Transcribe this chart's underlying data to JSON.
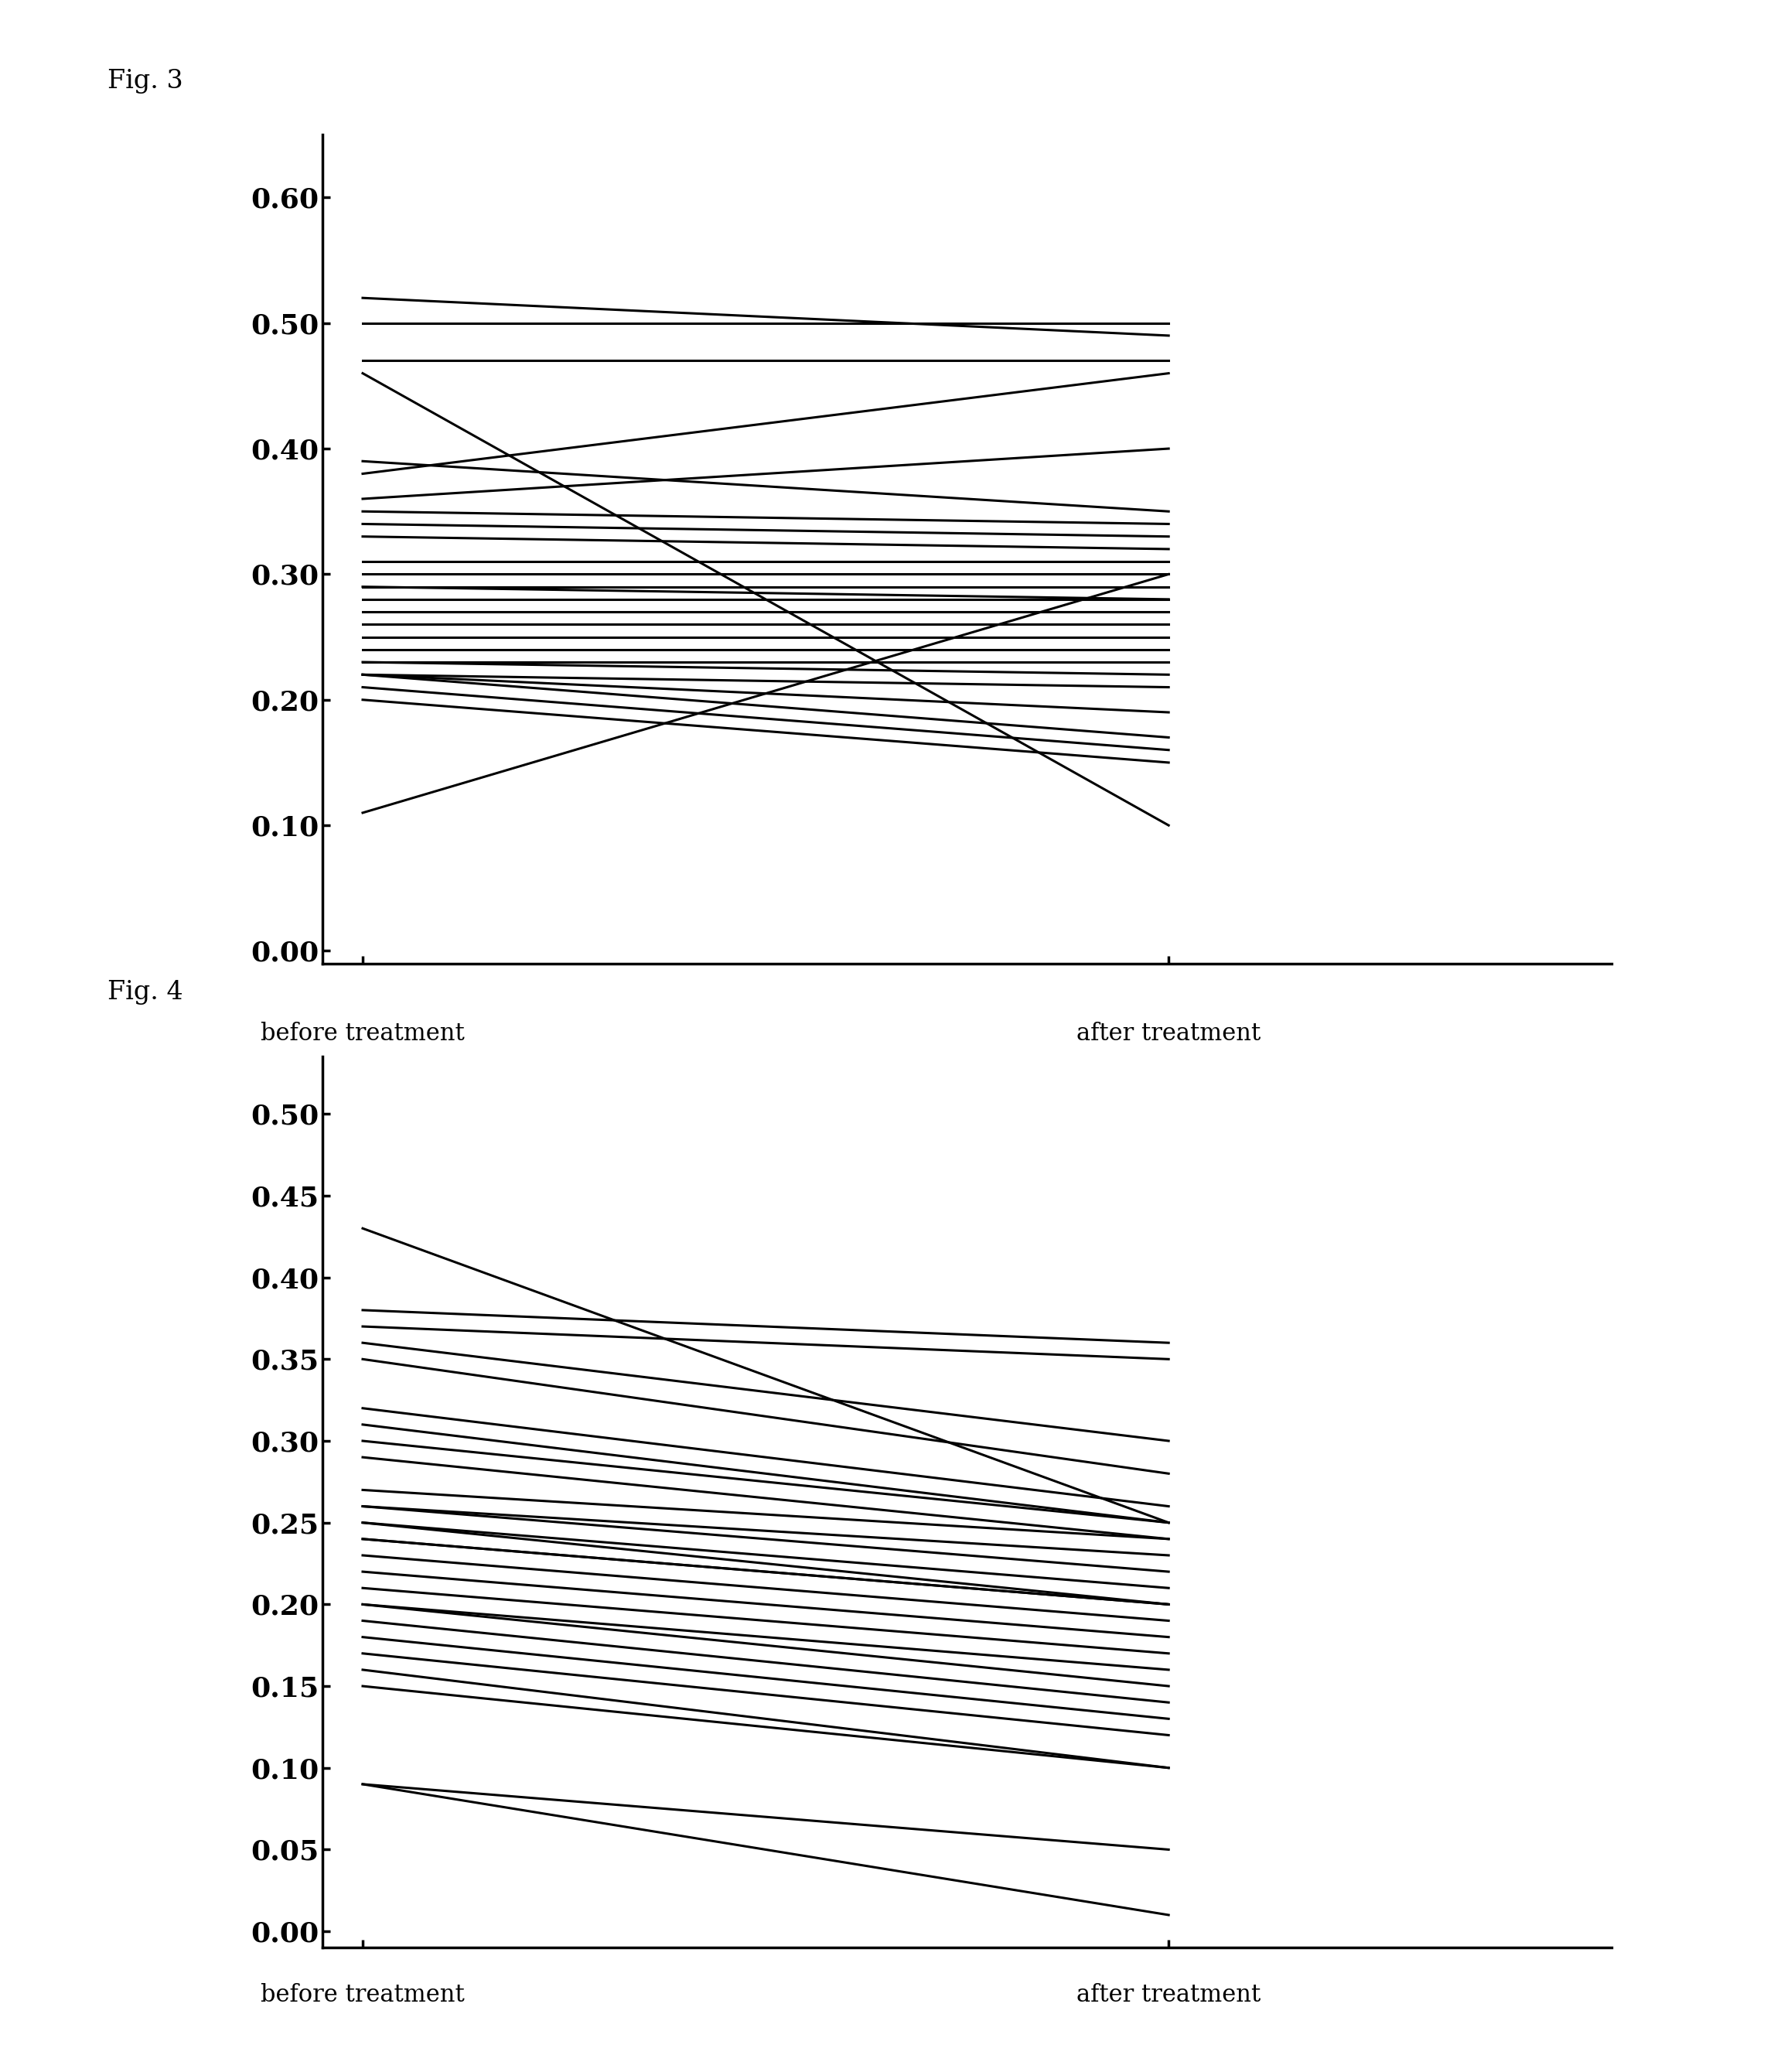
{
  "fig3_label": "Fig. 3",
  "fig4_label": "Fig. 4",
  "xlabel": "before treatment",
  "xlabel2": "after treatment",
  "fig3_yticks": [
    0.0,
    0.1,
    0.2,
    0.3,
    0.4,
    0.5,
    0.6
  ],
  "fig4_yticks": [
    0.0,
    0.05,
    0.1,
    0.15,
    0.2,
    0.25,
    0.3,
    0.35,
    0.4,
    0.45,
    0.5
  ],
  "fig3_ylim": [
    -0.01,
    0.65
  ],
  "fig4_ylim": [
    -0.01,
    0.535
  ],
  "line_color": "#000000",
  "bg_color": "#ffffff",
  "fig3_lines": [
    [
      0.52,
      0.49
    ],
    [
      0.5,
      0.5
    ],
    [
      0.47,
      0.47
    ],
    [
      0.38,
      0.46
    ],
    [
      0.36,
      0.4
    ],
    [
      0.35,
      0.34
    ],
    [
      0.34,
      0.33
    ],
    [
      0.33,
      0.32
    ],
    [
      0.31,
      0.31
    ],
    [
      0.3,
      0.3
    ],
    [
      0.29,
      0.29
    ],
    [
      0.28,
      0.28
    ],
    [
      0.27,
      0.27
    ],
    [
      0.26,
      0.26
    ],
    [
      0.25,
      0.25
    ],
    [
      0.24,
      0.24
    ],
    [
      0.23,
      0.23
    ],
    [
      0.23,
      0.22
    ],
    [
      0.22,
      0.21
    ],
    [
      0.22,
      0.19
    ],
    [
      0.22,
      0.17
    ],
    [
      0.21,
      0.16
    ],
    [
      0.2,
      0.15
    ],
    [
      0.46,
      0.1
    ],
    [
      0.11,
      0.3
    ],
    [
      0.39,
      0.35
    ],
    [
      0.29,
      0.28
    ]
  ],
  "fig4_lines": [
    [
      0.43,
      0.25
    ],
    [
      0.38,
      0.36
    ],
    [
      0.37,
      0.35
    ],
    [
      0.36,
      0.3
    ],
    [
      0.35,
      0.28
    ],
    [
      0.32,
      0.26
    ],
    [
      0.31,
      0.25
    ],
    [
      0.3,
      0.25
    ],
    [
      0.29,
      0.24
    ],
    [
      0.27,
      0.24
    ],
    [
      0.26,
      0.23
    ],
    [
      0.26,
      0.22
    ],
    [
      0.25,
      0.21
    ],
    [
      0.25,
      0.2
    ],
    [
      0.24,
      0.2
    ],
    [
      0.24,
      0.2
    ],
    [
      0.23,
      0.19
    ],
    [
      0.22,
      0.18
    ],
    [
      0.21,
      0.17
    ],
    [
      0.2,
      0.16
    ],
    [
      0.2,
      0.15
    ],
    [
      0.19,
      0.14
    ],
    [
      0.18,
      0.13
    ],
    [
      0.17,
      0.12
    ],
    [
      0.16,
      0.1
    ],
    [
      0.15,
      0.1
    ],
    [
      0.09,
      0.05
    ],
    [
      0.09,
      0.01
    ]
  ]
}
